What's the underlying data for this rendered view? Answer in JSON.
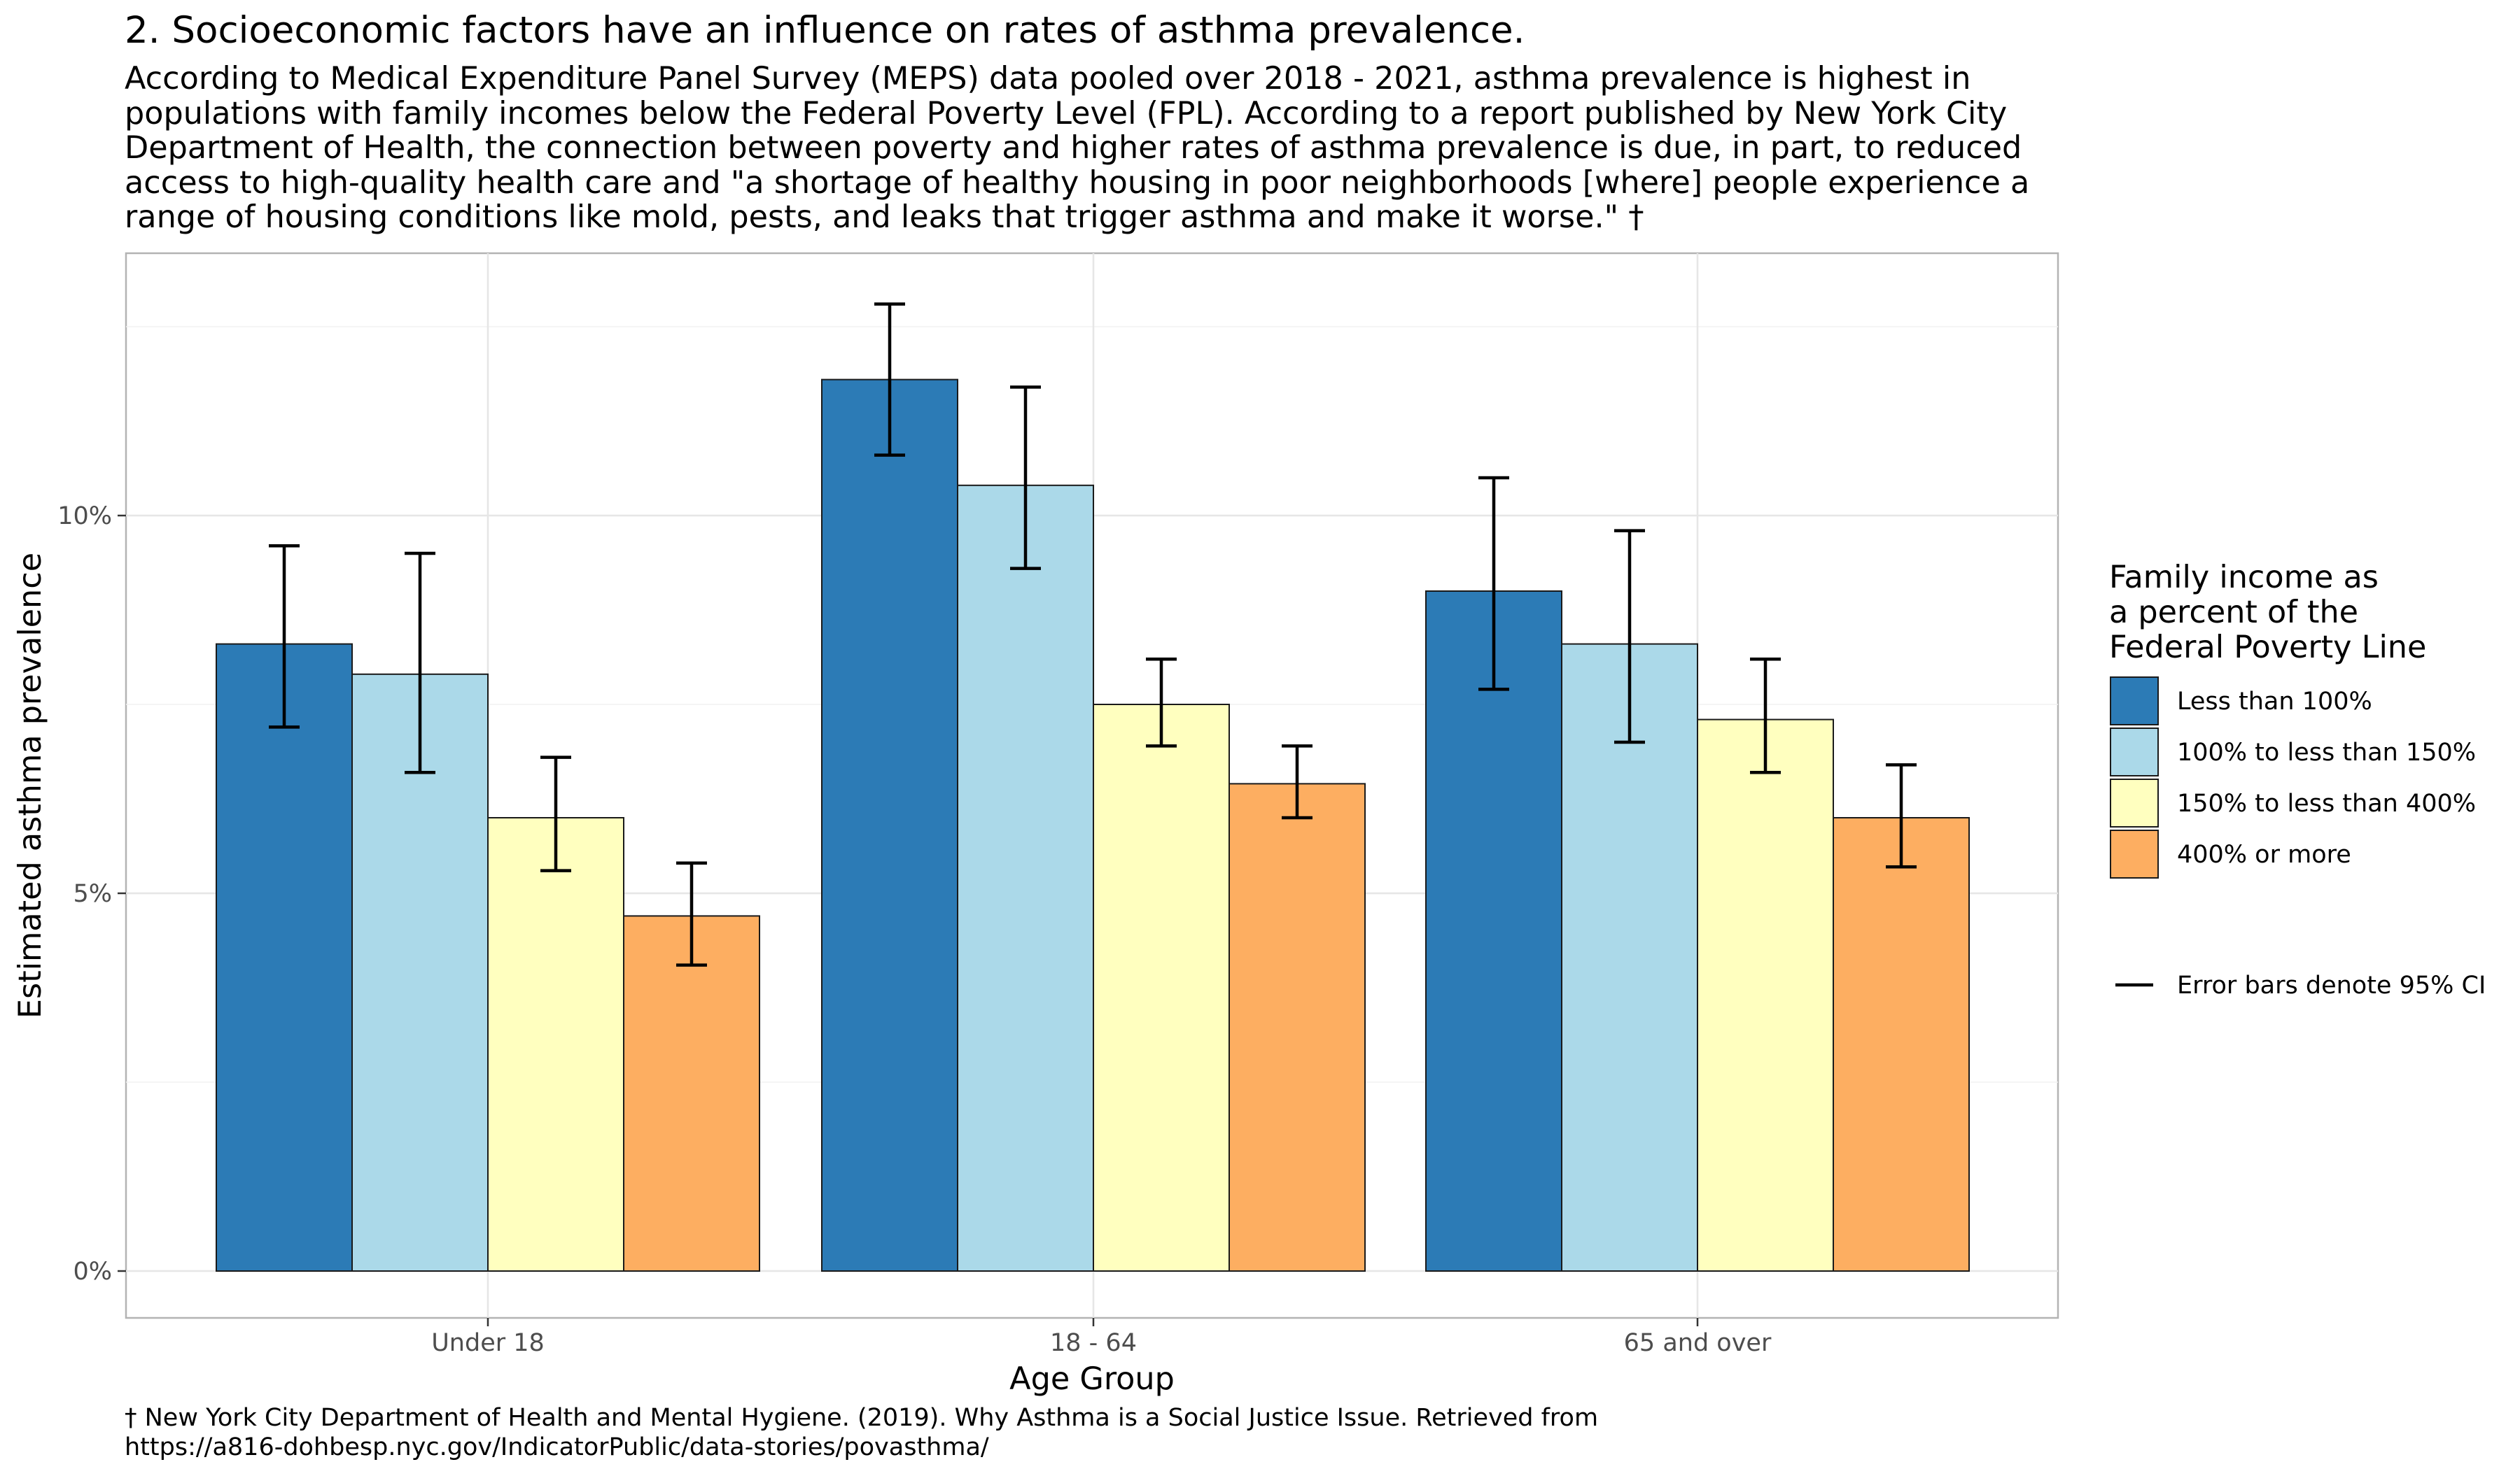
{
  "title": "2. Socioeconomic factors have an influence on rates of asthma prevalence.",
  "subtitle_lines": [
    "According to Medical Expenditure Panel Survey (MEPS) data pooled over 2018 - 2021, asthma prevalence is highest in",
    "populations with family incomes below the Federal Poverty Level (FPL). According to a report published by New York City",
    "Department of Health, the connection between poverty and higher rates of asthma prevalence is due, in part, to reduced",
    "access to high-quality health care and \"a shortage of healthy housing in poor neighborhoods [where] people experience a",
    "range of housing conditions like mold, pests, and leaks that trigger asthma and make it worse.\" †"
  ],
  "caption_lines": [
    "† New York City Department of Health and Mental Hygiene. (2019). Why Asthma is a Social Justice Issue. Retrieved from",
    "https://a816-dohbesp.nyc.gov/IndicatorPublic/data-stories/povasthma/"
  ],
  "chart_data": {
    "type": "bar",
    "xlabel": "Age Group",
    "ylabel": "Estimated asthma prevalence",
    "ylim": [
      -0.6,
      13.5
    ],
    "yticks": [
      0,
      5,
      10
    ],
    "ytick_labels": [
      "0%",
      "5%",
      "10%"
    ],
    "grid": true,
    "legend_position": "right",
    "categories": [
      "Under 18",
      "18 - 64",
      "65 and over"
    ],
    "series": [
      {
        "name": "Less than 100%",
        "color": "#2c7bb6",
        "values": [
          8.3,
          11.8,
          9.0
        ],
        "ci_low": [
          7.2,
          10.8,
          7.7
        ],
        "ci_high": [
          9.6,
          12.8,
          10.5
        ]
      },
      {
        "name": "100% to less than 150%",
        "color": "#abd9e9",
        "values": [
          7.9,
          10.4,
          8.3
        ],
        "ci_low": [
          6.6,
          9.3,
          7.0
        ],
        "ci_high": [
          9.5,
          11.7,
          9.8
        ]
      },
      {
        "name": "150% to less than 400%",
        "color": "#ffffbf",
        "values": [
          6.0,
          7.5,
          7.3
        ],
        "ci_low": [
          5.3,
          6.95,
          6.6
        ],
        "ci_high": [
          6.8,
          8.1,
          8.1
        ]
      },
      {
        "name": "400% or more",
        "color": "#fdae61",
        "values": [
          4.7,
          6.45,
          6.0
        ],
        "ci_low": [
          4.05,
          6.0,
          5.35
        ],
        "ci_high": [
          5.4,
          6.95,
          6.7
        ]
      }
    ],
    "legend_title_lines": [
      "Family income as",
      "a percent of the",
      "Federal Poverty Line"
    ],
    "errorbar_legend_label": "Error bars denote 95% CI"
  }
}
